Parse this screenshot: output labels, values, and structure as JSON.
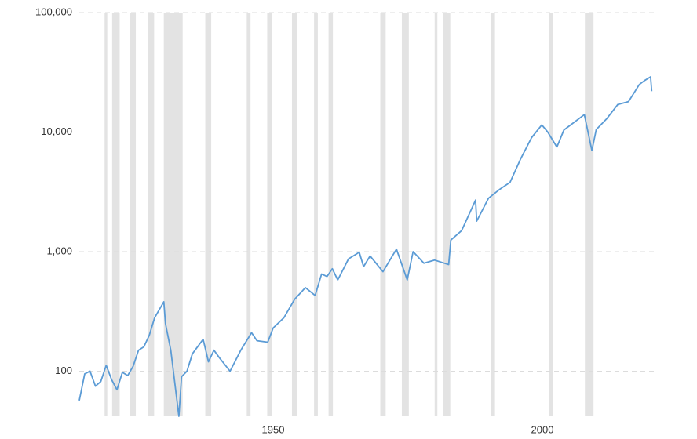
{
  "chart_data": {
    "type": "line",
    "x": [
      1914,
      1915,
      1916,
      1917,
      1918,
      1919,
      1920,
      1921,
      1922,
      1923,
      1924,
      1925,
      1926,
      1927,
      1928,
      1929.7,
      1930,
      1931,
      1932.5,
      1933,
      1934,
      1935,
      1937,
      1938,
      1939,
      1940,
      1942,
      1944,
      1946,
      1947,
      1949,
      1950,
      1952,
      1954,
      1956,
      1957.8,
      1959,
      1960,
      1961,
      1962,
      1964,
      1966,
      1966.8,
      1968,
      1970.4,
      1972.9,
      1974.9,
      1976,
      1978,
      1980,
      1982.6,
      1983,
      1985,
      1987.6,
      1987.8,
      1990,
      1992,
      1994,
      1996,
      1998,
      1999.9,
      2001,
      2002.7,
      2004,
      2007.8,
      2009.2,
      2010,
      2012,
      2014,
      2016,
      2018,
      2019,
      2020.1,
      2020.3
    ],
    "series": [
      {
        "color": "#5b9bd5",
        "values": [
          57,
          95,
          100,
          75,
          82,
          112,
          85,
          70,
          98,
          92,
          110,
          150,
          160,
          200,
          280,
          381,
          250,
          150,
          42,
          90,
          100,
          140,
          185,
          120,
          150,
          130,
          100,
          150,
          210,
          180,
          175,
          230,
          280,
          400,
          500,
          430,
          650,
          620,
          720,
          580,
          870,
          990,
          750,
          920,
          680,
          1050,
          580,
          1000,
          800,
          850,
          780,
          1250,
          1500,
          2700,
          1800,
          2800,
          3300,
          3800,
          6000,
          9000,
          11500,
          10000,
          7500,
          10400,
          14000,
          7000,
          10500,
          13000,
          17000,
          18000,
          25000,
          27000,
          29000,
          22000
        ]
      }
    ],
    "recessions": [
      [
        1918.7,
        1919.2
      ],
      [
        1920.1,
        1921.5
      ],
      [
        1923.4,
        1924.5
      ],
      [
        1926.8,
        1927.9
      ],
      [
        1929.7,
        1933.2
      ],
      [
        1937.4,
        1938.5
      ],
      [
        1945.1,
        1945.8
      ],
      [
        1948.9,
        1949.8
      ],
      [
        1953.5,
        1954.4
      ],
      [
        1957.6,
        1958.3
      ],
      [
        1960.3,
        1961.1
      ],
      [
        1969.9,
        1970.9
      ],
      [
        1973.9,
        1975.2
      ],
      [
        1980.0,
        1980.5
      ],
      [
        1981.5,
        1982.9
      ],
      [
        1990.5,
        1991.2
      ],
      [
        2001.2,
        2001.9
      ],
      [
        2007.9,
        2009.5
      ]
    ],
    "recession_color": "#e3e3e3",
    "xlim": [
      1914,
      2020.7
    ],
    "xticks": [
      1950,
      2000
    ],
    "ylim": [
      42,
      100000
    ],
    "log_y": true,
    "yticks": [
      {
        "value": 100,
        "label": "100"
      },
      {
        "value": 1000,
        "label": "1,000"
      },
      {
        "value": 10000,
        "label": "10,000"
      },
      {
        "value": 100000,
        "label": "100,000"
      }
    ],
    "grid": true
  }
}
